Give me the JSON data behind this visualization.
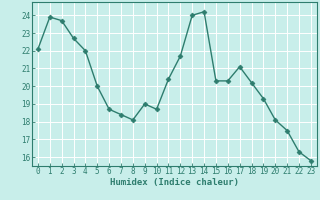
{
  "x": [
    0,
    1,
    2,
    3,
    4,
    5,
    6,
    7,
    8,
    9,
    10,
    11,
    12,
    13,
    14,
    15,
    16,
    17,
    18,
    19,
    20,
    21,
    22,
    23
  ],
  "y": [
    22.1,
    23.9,
    23.7,
    22.7,
    22.0,
    20.0,
    18.7,
    18.4,
    18.1,
    19.0,
    18.7,
    20.4,
    21.7,
    24.0,
    24.2,
    20.3,
    20.3,
    21.1,
    20.2,
    19.3,
    18.1,
    17.5,
    16.3,
    15.8
  ],
  "line_color": "#2e7d6e",
  "marker": "D",
  "markersize": 2.5,
  "linewidth": 1.0,
  "bg_color": "#c8eeea",
  "grid_color": "#ffffff",
  "xlabel": "Humidex (Indice chaleur)",
  "xlim": [
    -0.5,
    23.5
  ],
  "ylim": [
    15.5,
    24.75
  ],
  "yticks": [
    16,
    17,
    18,
    19,
    20,
    21,
    22,
    23,
    24
  ],
  "xticks": [
    0,
    1,
    2,
    3,
    4,
    5,
    6,
    7,
    8,
    9,
    10,
    11,
    12,
    13,
    14,
    15,
    16,
    17,
    18,
    19,
    20,
    21,
    22,
    23
  ],
  "tick_color": "#2e7d6e",
  "label_fontsize": 6.5,
  "tick_fontsize": 5.5
}
